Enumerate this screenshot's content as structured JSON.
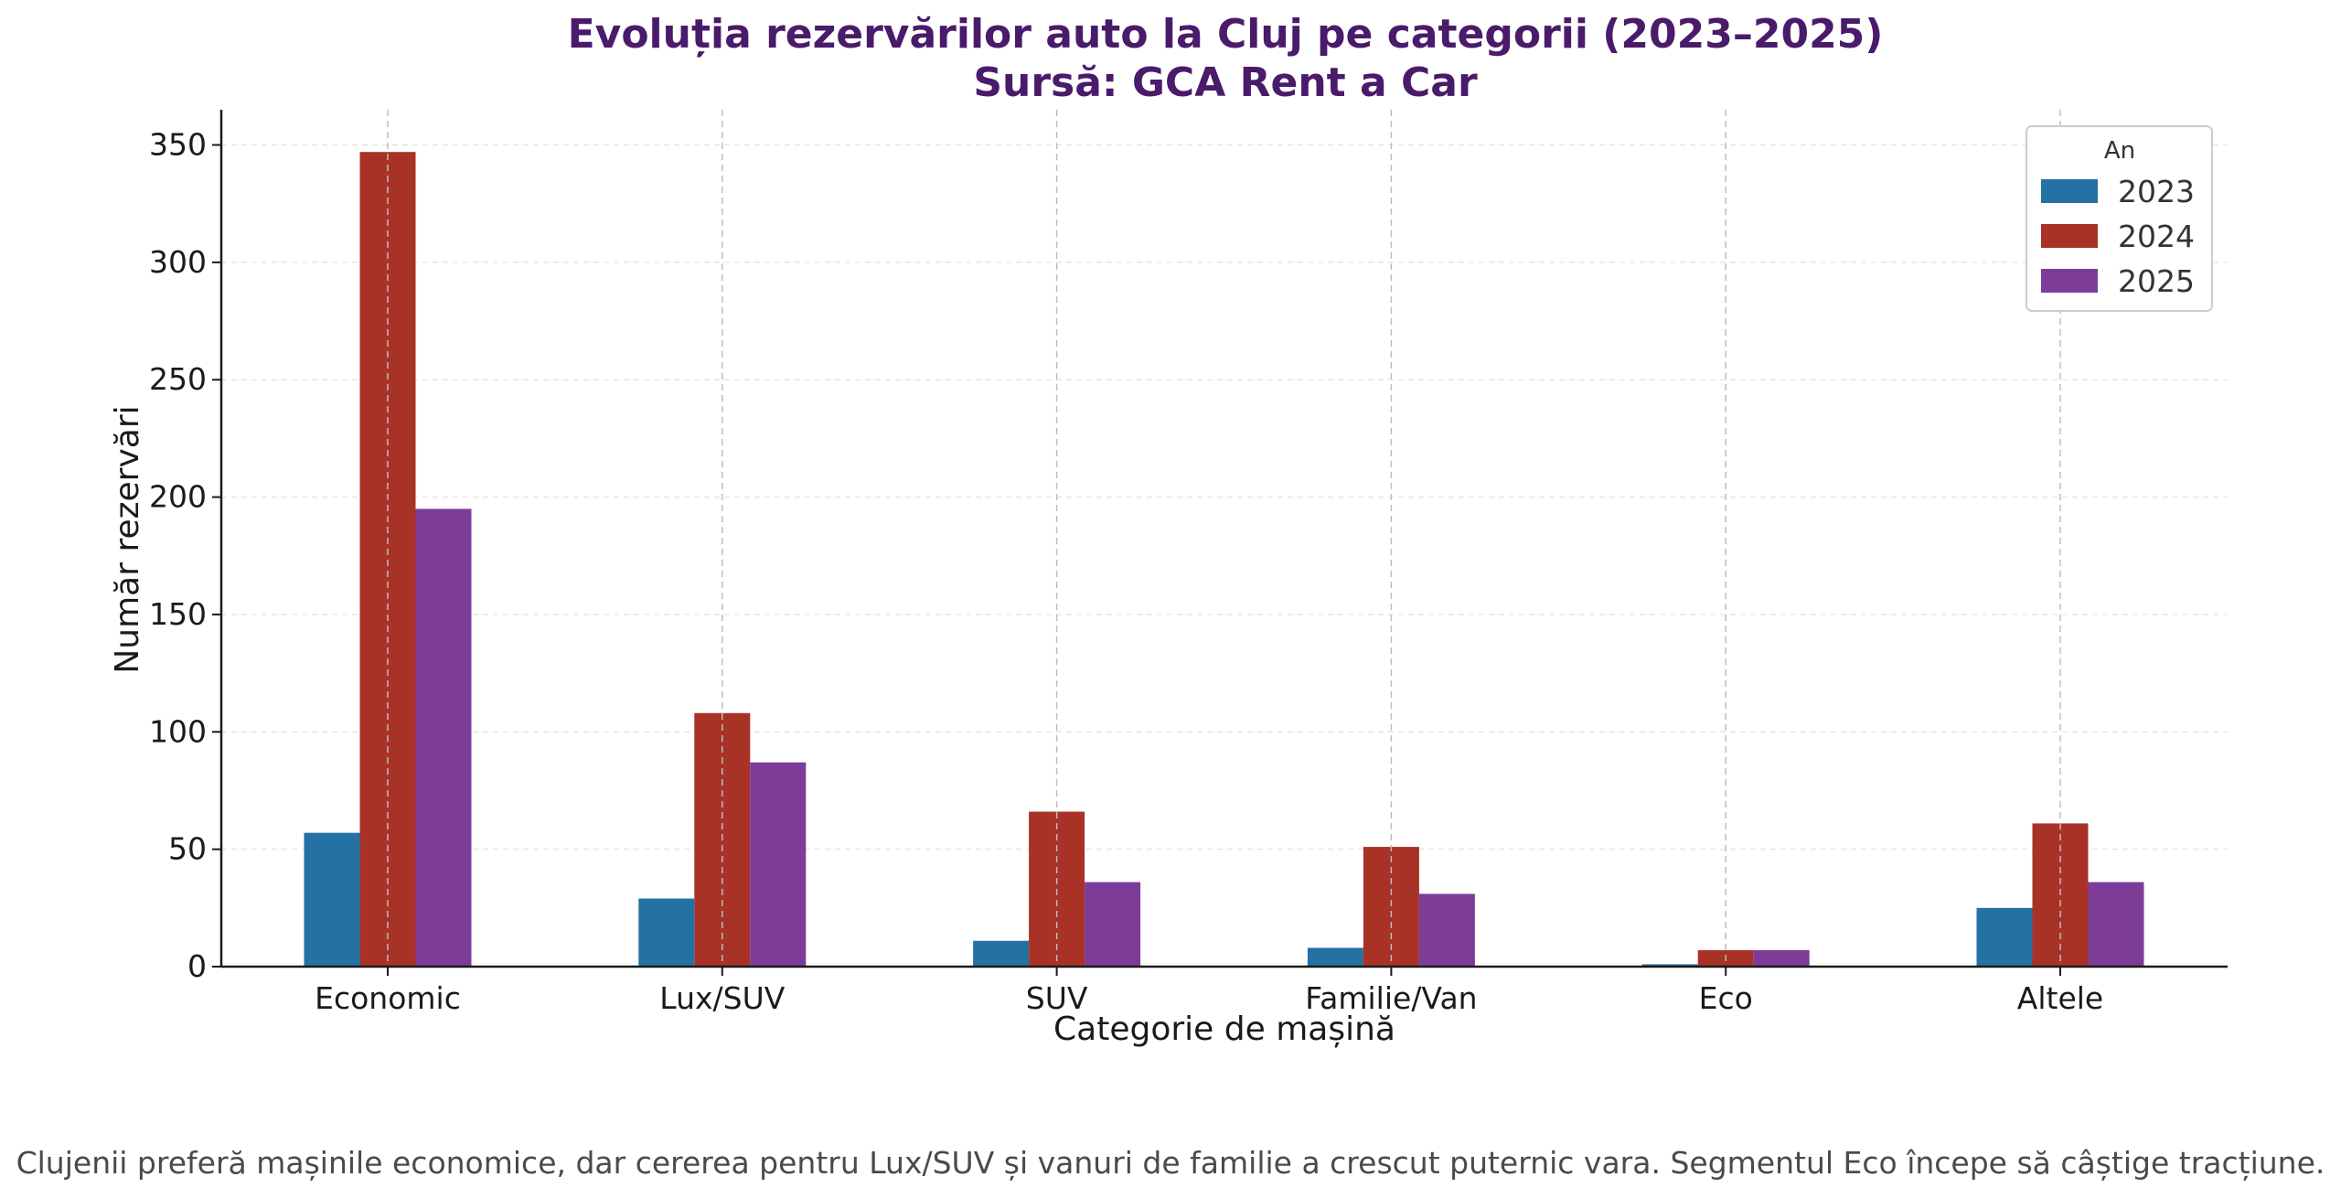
{
  "chart_data": {
    "type": "bar",
    "title": "Evoluția rezervărilor auto la Cluj pe categorii (2023–2025)",
    "subtitle": "Sursă: GCA Rent a Car",
    "xlabel": "Categorie de mașină",
    "ylabel": "Număr rezervări",
    "ylim": [
      0,
      365
    ],
    "yticks": [
      0,
      50,
      100,
      150,
      200,
      250,
      300,
      350
    ],
    "grid": true,
    "categories": [
      "Economic",
      "Lux/SUV",
      "SUV",
      "Familie/Van",
      "Eco",
      "Altele"
    ],
    "legend": {
      "title": "An",
      "position": "top-right"
    },
    "series": [
      {
        "name": "2023",
        "color": "#2471a3",
        "values": [
          57,
          29,
          11,
          8,
          1,
          25
        ]
      },
      {
        "name": "2024",
        "color": "#a93226",
        "values": [
          347,
          108,
          66,
          51,
          7,
          61
        ]
      },
      {
        "name": "2025",
        "color": "#7d3c98",
        "values": [
          195,
          87,
          36,
          31,
          7,
          36
        ]
      }
    ],
    "caption": "Clujenii preferă mașinile economice, dar cererea pentru Lux/SUV și vanuri de familie a crescut puternic vara. Segmentul Eco începe să câștige tracțiune."
  }
}
